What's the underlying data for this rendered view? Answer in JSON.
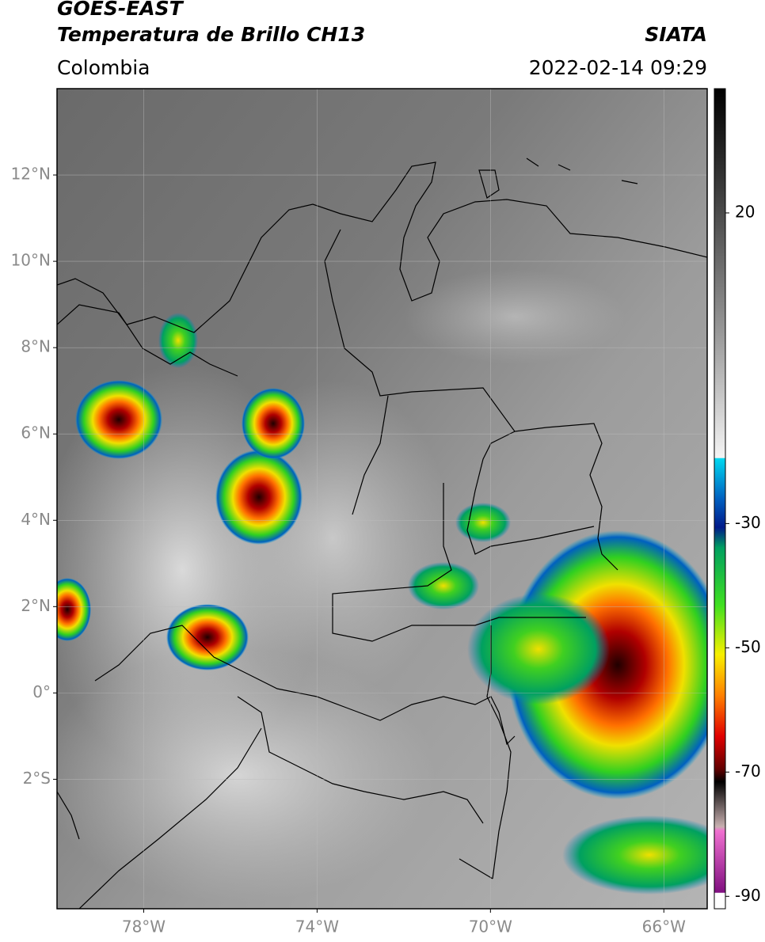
{
  "header": {
    "title": "GOES-EAST",
    "subtitle": "Temperatura de Brillo CH13",
    "source": "SIATA",
    "region": "Colombia",
    "datetime": "2022-02-14 09:29"
  },
  "map": {
    "lonlim": [
      -80,
      -65
    ],
    "latlim": [
      -5,
      14
    ],
    "grid": true,
    "lon_ticks": [
      {
        "value": -78,
        "label": "78°W"
      },
      {
        "value": -74,
        "label": "74°W"
      },
      {
        "value": -70,
        "label": "70°W"
      },
      {
        "value": -66,
        "label": "66°W"
      }
    ],
    "lat_ticks": [
      {
        "value": 12,
        "label": "12°N"
      },
      {
        "value": 10,
        "label": "10°N"
      },
      {
        "value": 8,
        "label": "8°N"
      },
      {
        "value": 6,
        "label": "6°N"
      },
      {
        "value": 4,
        "label": "4°N"
      },
      {
        "value": 2,
        "label": "2°N"
      },
      {
        "value": 0,
        "label": "0°"
      },
      {
        "value": -2,
        "label": "2°S"
      }
    ]
  },
  "colorbar": {
    "lim": [
      -92,
      40
    ],
    "ticks": [
      20,
      -30,
      -50,
      -70,
      -90
    ]
  }
}
